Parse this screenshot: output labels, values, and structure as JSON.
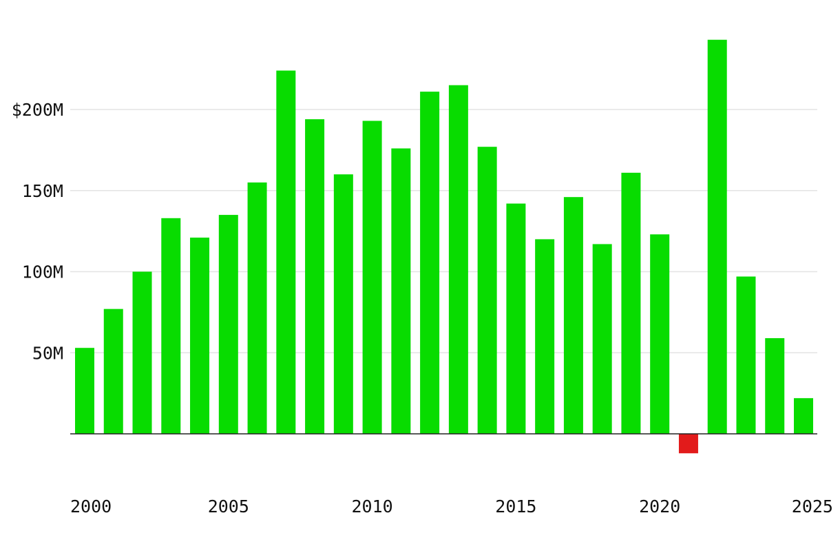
{
  "chart_data": {
    "type": "bar",
    "title": "",
    "xlabel": "",
    "ylabel": "",
    "x": [
      2000,
      2001,
      2002,
      2003,
      2004,
      2005,
      2006,
      2007,
      2008,
      2009,
      2010,
      2011,
      2012,
      2013,
      2014,
      2015,
      2016,
      2017,
      2018,
      2019,
      2020,
      2021,
      2022,
      2023,
      2024,
      2025
    ],
    "values": [
      53,
      77,
      100,
      133,
      121,
      135,
      155,
      224,
      194,
      160,
      193,
      176,
      211,
      215,
      177,
      142,
      120,
      146,
      117,
      161,
      123,
      -12,
      243,
      97,
      59,
      22
    ],
    "units": "million USD",
    "xlim": [
      2000,
      2025
    ],
    "ylim": [
      -35,
      260
    ],
    "y_ticks": [
      {
        "value": 50,
        "label": "50M"
      },
      {
        "value": 100,
        "label": "100M"
      },
      {
        "value": 150,
        "label": "150M"
      },
      {
        "value": 200,
        "label": "$200M"
      }
    ],
    "x_ticks": [
      {
        "value": 2000,
        "label": "2000"
      },
      {
        "value": 2005,
        "label": "2005"
      },
      {
        "value": 2010,
        "label": "2010"
      },
      {
        "value": 2015,
        "label": "2015"
      },
      {
        "value": 2020,
        "label": "2020"
      },
      {
        "value": 2025,
        "label": "2025"
      }
    ],
    "grid": true,
    "legend": "none",
    "colors": {
      "positive": "#08dc00",
      "negative": "#e21b1b",
      "grid": "#e3e3e3",
      "baseline": "#222222"
    }
  }
}
